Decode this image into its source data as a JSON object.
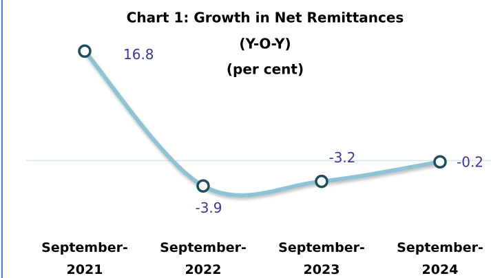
{
  "chart_data": {
    "type": "line",
    "title": [
      "Chart 1: Growth in Net Remittances",
      "(Y-O-Y)",
      "(per cent)"
    ],
    "categories": [
      "September-2021",
      "September-2022",
      "September-2023",
      "September-2024"
    ],
    "values": [
      16.8,
      -3.9,
      -3.2,
      -0.2
    ],
    "ylim": [
      -10,
      20
    ],
    "color": "#8fc3d4",
    "marker_color": "#1d4d5c",
    "label_color": "#3a3891"
  }
}
